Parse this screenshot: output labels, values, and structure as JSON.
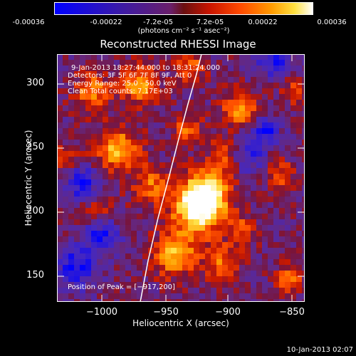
{
  "colorbar": {
    "ticks": [
      "-0.00036",
      "-0.00022",
      "-7.2e-05",
      "7.2e-05",
      "0.00022",
      "0.00036"
    ],
    "unit": "(photons cm⁻² s⁻¹ asec⁻²)",
    "colors": [
      "#0000ff",
      "#3a1aa8",
      "#5a1e82",
      "#6a1f6a",
      "#7e1d1d",
      "#c81400",
      "#ff4a00",
      "#ff9a00",
      "#ffe040",
      "#ffffff"
    ]
  },
  "plot": {
    "title": "Reconstructed RHESSI Image",
    "x_label": "Heliocentric X (arcsec)",
    "y_label": "Heliocentric Y (arcsec)",
    "x_ticks": [
      "−1000",
      "−950",
      "−900",
      "−850"
    ],
    "y_ticks": [
      "300",
      "250",
      "200",
      "150"
    ],
    "info_lines": [
      "9-Jan-2013 18:27:44.000 to 18:31:24.000",
      "Detectors: 3F 5F 6F 7F 8F 9F, Att 0",
      "Energy Range: 25.0 - 50.0 keV",
      "Clean     Total counts: 7.17E+03"
    ],
    "peak_label": "Position of Peak = [−917,200]",
    "x_range": [
      -1035,
      -843
    ],
    "y_range": [
      130,
      325
    ]
  },
  "timestamp": "10-Jan-2013 02:07"
}
